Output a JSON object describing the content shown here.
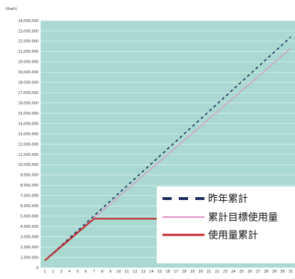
{
  "chart_data": {
    "type": "line",
    "unit_label": "(Kwh)",
    "x": [
      1,
      2,
      3,
      4,
      5,
      6,
      7,
      8,
      9,
      10,
      11,
      12,
      13,
      14,
      15,
      16,
      17,
      18,
      19,
      20,
      21,
      22,
      23,
      24,
      25,
      26,
      27,
      28,
      29,
      30,
      31
    ],
    "x_tick_labels": [
      "1",
      "2",
      "3",
      "4",
      "5",
      "6",
      "7",
      "8",
      "9",
      "10",
      "11",
      "12",
      "13",
      "14",
      "15",
      "16",
      "17",
      "18",
      "19",
      "20",
      "21",
      "22",
      "23",
      "24",
      "25",
      "26",
      "27",
      "28",
      "29",
      "30",
      "31"
    ],
    "ylim": [
      0,
      24000000
    ],
    "y_ticks": [
      0,
      1000000,
      2000000,
      3000000,
      4000000,
      5000000,
      6000000,
      7000000,
      8000000,
      9000000,
      10000000,
      11000000,
      12000000,
      13000000,
      14000000,
      15000000,
      16000000,
      17000000,
      18000000,
      19000000,
      20000000,
      21000000,
      22000000,
      23000000,
      24000000
    ],
    "y_tick_labels": [
      "0",
      "1,000,000",
      "2,000,000",
      "3,000,000",
      "4,000,000",
      "5,000,000",
      "6,000,000",
      "7,000,000",
      "8,000,000",
      "9,000,000",
      "10,000,000",
      "11,000,000",
      "12,000,000",
      "13,000,000",
      "14,000,000",
      "15,000,000",
      "16,000,000",
      "17,000,000",
      "18,000,000",
      "19,000,000",
      "20,000,000",
      "21,000,000",
      "22,000,000",
      "23,000,000",
      "24,000,000"
    ],
    "grid": true,
    "legend_position": "bottom-right",
    "series": [
      {
        "name": "昨年累計",
        "color": "#1a2a5a",
        "style": "dashed",
        "x": [
          1,
          31
        ],
        "values": [
          700000,
          22400000
        ]
      },
      {
        "name": "累計目標使用量",
        "color": "#e48ac4",
        "style": "solid",
        "x": [
          1,
          31
        ],
        "values": [
          700000,
          21300000
        ]
      },
      {
        "name": "使用量累計",
        "color": "#c0282c",
        "style": "solid",
        "x": [
          1,
          7,
          8,
          22
        ],
        "values": [
          700000,
          4750000,
          4750000,
          4750000
        ]
      }
    ],
    "colors": {
      "plot_background": "#a9d9d1",
      "grid": "#e8f4f1"
    }
  }
}
